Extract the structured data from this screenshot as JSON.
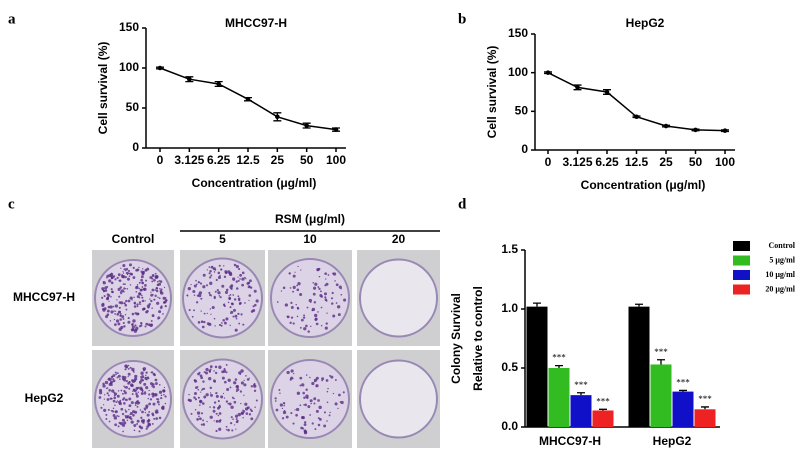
{
  "figure": {
    "panel_labels": [
      "a",
      "b",
      "c",
      "d"
    ],
    "photo_panel": {
      "treatment_label": "RSM (μg/ml)",
      "columns": [
        "Control",
        "5",
        "10",
        "20"
      ],
      "rows": [
        "MHCC97-H",
        "HepG2"
      ]
    }
  },
  "chart_data": [
    {
      "type": "line",
      "title": "MHCC97-H",
      "x_label": "Concentration (μg/ml)",
      "y_label": "Cell survival (%)",
      "categories": [
        "0",
        "3.125",
        "6.25",
        "12.5",
        "25",
        "50",
        "100"
      ],
      "values": [
        100,
        86,
        80,
        61,
        39,
        28,
        23
      ],
      "errors": [
        1,
        3,
        3,
        2,
        5,
        3,
        2
      ],
      "color": "#000000",
      "ylim": [
        0,
        150
      ],
      "yticks": [
        0,
        50,
        100,
        150
      ]
    },
    {
      "type": "line",
      "title": "HepG2",
      "x_label": "Concentration (μg/ml)",
      "y_label": "Cell survival (%)",
      "categories": [
        "0",
        "3.125",
        "6.25",
        "12.5",
        "25",
        "50",
        "100"
      ],
      "values": [
        100,
        81,
        75,
        43,
        31,
        26,
        25
      ],
      "errors": [
        1,
        3,
        3,
        1,
        1,
        1,
        1
      ],
      "color": "#000000",
      "ylim": [
        0,
        150
      ],
      "yticks": [
        0,
        50,
        100,
        150
      ]
    },
    {
      "type": "bar",
      "y_label": [
        "Colony Survival",
        "Relative to control"
      ],
      "categories": [
        "MHCC97-H",
        "HepG2"
      ],
      "series": [
        {
          "name": "Control",
          "color": "#000000",
          "values": [
            1.02,
            1.02
          ],
          "errors": [
            0.03,
            0.02
          ]
        },
        {
          "name": "5 μg/ml",
          "color": "#33bb22",
          "values": [
            0.5,
            0.53
          ],
          "errors": [
            0.02,
            0.04
          ],
          "annotations": [
            "***",
            "***"
          ]
        },
        {
          "name": "10 μg/ml",
          "color": "#1010c8",
          "values": [
            0.27,
            0.3
          ],
          "errors": [
            0.02,
            0.01
          ],
          "annotations": [
            "***",
            "***"
          ]
        },
        {
          "name": "20 μg/ml",
          "color": "#ee2222",
          "values": [
            0.14,
            0.15
          ],
          "errors": [
            0.01,
            0.02
          ],
          "annotations": [
            "***",
            "***"
          ]
        }
      ],
      "ylim": [
        0,
        1.5
      ],
      "yticks": [
        {
          "value": 0,
          "label": "0.0"
        },
        0.5,
        {
          "value": 1,
          "label": "1.0"
        },
        1.5
      ],
      "legend": "upper right"
    }
  ]
}
